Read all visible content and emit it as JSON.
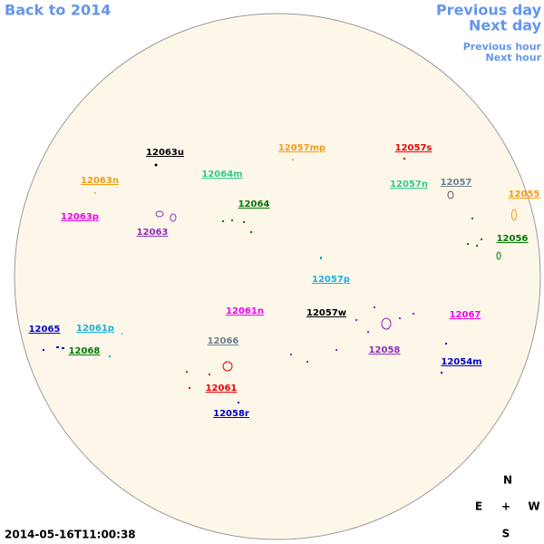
{
  "navigation": {
    "back": "Back to 2014",
    "previous_day": "Previous day",
    "next_day": "Next day",
    "previous_hour": "Previous hour",
    "next_hour": "Next hour"
  },
  "regions": [
    "12063u",
    "12057mp",
    "12057s",
    "12063n",
    "12064m",
    "12057n",
    "12057",
    "12055",
    "12064",
    "12063p",
    "12063",
    "12056",
    "12057p",
    "12061n",
    "12057w",
    "12067",
    "12065",
    "12061p",
    "12068",
    "12066",
    "12058",
    "12054m",
    "12061",
    "12058r"
  ],
  "compass": {
    "north": "N",
    "east": "E",
    "center": "+",
    "west": "W",
    "south": "S"
  },
  "timestamp": "2014-05-16T11:00:38"
}
